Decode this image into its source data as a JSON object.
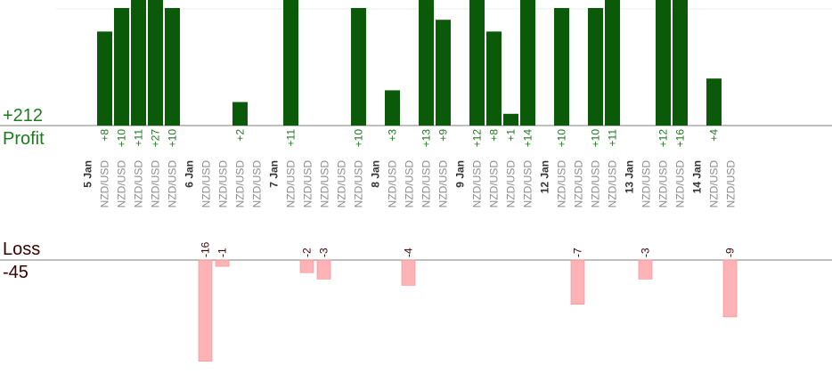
{
  "summary": {
    "profit_total": "+212",
    "profit_label": "Profit",
    "loss_label": "Loss",
    "loss_total": "-45"
  },
  "colors": {
    "profit_bar": "#0a5a0a",
    "profit_text": "#1e7a1e",
    "loss_bar": "#ffb3b6",
    "loss_text": "#3a0000",
    "axis": "#7f7f7f",
    "date_text": "#333333",
    "pair_text": "#8c8c8c"
  },
  "chart_data": {
    "type": "bar",
    "note_scale": "bars clipped at chart edges",
    "days": [
      {
        "date": "5 Jan",
        "trades": [
          {
            "pair": "NZD/USD",
            "profit": 8,
            "label": "+8"
          },
          {
            "pair": "NZD/USD",
            "profit": 10,
            "label": "+10"
          },
          {
            "pair": "NZD/USD",
            "profit": 11,
            "label": "+11"
          },
          {
            "pair": "NZD/USD",
            "profit": 27,
            "label": "+27"
          },
          {
            "pair": "NZD/USD",
            "profit": 10,
            "label": "+10"
          }
        ]
      },
      {
        "date": "6 Jan",
        "trades": [
          {
            "pair": "NZD/USD",
            "loss": -16,
            "label": "-16"
          },
          {
            "pair": "NZD/USD",
            "loss": -1,
            "label": "-1"
          },
          {
            "pair": "NZD/USD",
            "profit": 2,
            "label": "+2"
          },
          {
            "pair": "NZD/USD"
          }
        ]
      },
      {
        "date": "7 Jan",
        "trades": [
          {
            "pair": "NZD/USD",
            "profit": 11,
            "label": "+11"
          },
          {
            "pair": "NZD/USD",
            "loss": -2,
            "label": "-2"
          },
          {
            "pair": "NZD/USD",
            "loss": -3,
            "label": "-3"
          },
          {
            "pair": "NZD/USD"
          },
          {
            "pair": "NZD/USD",
            "profit": 10,
            "label": "+10"
          }
        ]
      },
      {
        "date": "8 Jan",
        "trades": [
          {
            "pair": "NZD/USD",
            "profit": 3,
            "label": "+3"
          },
          {
            "pair": "NZD/USD",
            "loss": -4,
            "label": "-4"
          },
          {
            "pair": "NZD/USD",
            "profit": 13,
            "label": "+13"
          },
          {
            "pair": "NZD/USD",
            "profit": 9,
            "label": "+9"
          }
        ]
      },
      {
        "date": "9 Jan",
        "trades": [
          {
            "pair": "NZD/USD",
            "profit": 12,
            "label": "+12"
          },
          {
            "pair": "NZD/USD",
            "profit": 8,
            "label": "+8"
          },
          {
            "pair": "NZD/USD",
            "profit": 1,
            "label": "+1"
          },
          {
            "pair": "NZD/USD",
            "profit": 14,
            "label": "+14"
          }
        ]
      },
      {
        "date": "12 Jan",
        "trades": [
          {
            "pair": "NZD/USD",
            "profit": 10,
            "label": "+10"
          },
          {
            "pair": "NZD/USD",
            "loss": -7,
            "label": "-7"
          },
          {
            "pair": "NZD/USD",
            "profit": 10,
            "label": "+10"
          },
          {
            "pair": "NZD/USD",
            "profit": 11,
            "label": "+11"
          }
        ]
      },
      {
        "date": "13 Jan",
        "trades": [
          {
            "pair": "NZD/USD",
            "loss": -3,
            "label": "-3"
          },
          {
            "pair": "NZD/USD",
            "profit": 12,
            "label": "+12"
          },
          {
            "pair": "NZD/USD",
            "profit": 16,
            "label": "+16"
          }
        ]
      },
      {
        "date": "14 Jan",
        "trades": [
          {
            "pair": "NZD/USD",
            "profit": 4,
            "label": "+4"
          },
          {
            "pair": "NZD/USD",
            "loss": -9,
            "label": "-9"
          }
        ]
      }
    ]
  }
}
